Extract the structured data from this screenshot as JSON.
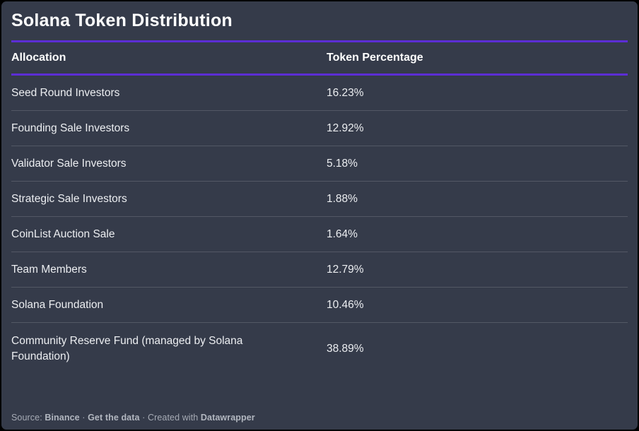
{
  "title": "Solana Token Distribution",
  "colors": {
    "background": "#353b4a",
    "accent_rule": "#5c2dd5",
    "text_primary": "#eceef1",
    "text_footer": "#a6abb5",
    "window_border": "#000000"
  },
  "table": {
    "columns": [
      "Allocation",
      "Token Percentage"
    ],
    "rows": [
      {
        "allocation": "Seed Round Investors",
        "percentage": "16.23%"
      },
      {
        "allocation": "Founding Sale Investors",
        "percentage": "12.92%"
      },
      {
        "allocation": "Validator Sale Investors",
        "percentage": "5.18%"
      },
      {
        "allocation": "Strategic Sale Investors",
        "percentage": "1.88%"
      },
      {
        "allocation": "CoinList Auction Sale",
        "percentage": "1.64%"
      },
      {
        "allocation": "Team Members",
        "percentage": "12.79%"
      },
      {
        "allocation": "Solana Foundation",
        "percentage": "10.46%"
      },
      {
        "allocation": "Community Reserve Fund (managed by Solana Foundation)",
        "percentage": "38.89%"
      }
    ]
  },
  "footer": {
    "source_prefix": "Source: ",
    "source_name": "Binance",
    "separator1": " · ",
    "get_data_label": "Get the data",
    "separator2": " · ",
    "created_prefix": "Created with ",
    "brand": "Datawrapper"
  },
  "chart_data": {
    "type": "table",
    "title": "Solana Token Distribution",
    "columns": [
      "Allocation",
      "Token Percentage"
    ],
    "categories": [
      "Seed Round Investors",
      "Founding Sale Investors",
      "Validator Sale Investors",
      "Strategic Sale Investors",
      "CoinList Auction Sale",
      "Team Members",
      "Solana Foundation",
      "Community Reserve Fund (managed by Solana Foundation)"
    ],
    "values": [
      16.23,
      12.92,
      5.18,
      1.88,
      1.64,
      12.79,
      10.46,
      38.89
    ],
    "value_unit": "%",
    "source": "Binance"
  }
}
